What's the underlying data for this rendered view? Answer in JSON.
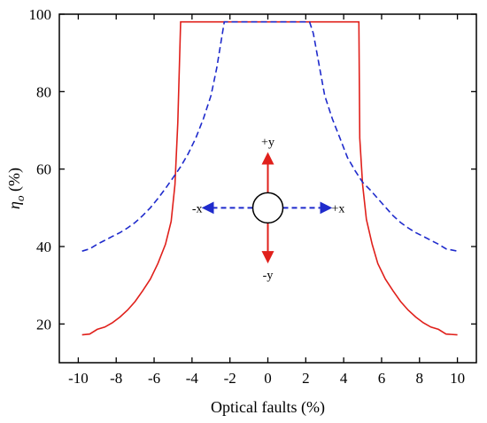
{
  "chart_data": {
    "type": "line",
    "xlabel": "Optical faults (%)",
    "ylabel": {
      "symbol": "η",
      "subscript": "o",
      "unit": " (%)"
    },
    "xlim": [
      -11,
      11
    ],
    "ylim": [
      10,
      100
    ],
    "xticks": [
      -10,
      -8,
      -6,
      -4,
      -2,
      0,
      2,
      4,
      6,
      8,
      10
    ],
    "yticks": [
      20,
      40,
      60,
      80,
      100
    ],
    "tick_labels_x": [
      "-10",
      "-8",
      "-6",
      "-4",
      "-2",
      "0",
      "2",
      "4",
      "6",
      "8",
      "10"
    ],
    "tick_labels_y": [
      "20",
      "40",
      "60",
      "80",
      "100"
    ],
    "grid": false,
    "series": [
      {
        "style": "solid",
        "color": "#e0201b",
        "points": [
          [
            -9.8,
            17.2
          ],
          [
            -9.4,
            17.4
          ],
          [
            -9.0,
            18.6
          ],
          [
            -8.6,
            19.2
          ],
          [
            -8.2,
            20.3
          ],
          [
            -7.8,
            21.8
          ],
          [
            -7.4,
            23.6
          ],
          [
            -7.0,
            25.8
          ],
          [
            -6.6,
            28.6
          ],
          [
            -6.2,
            31.6
          ],
          [
            -5.8,
            35.6
          ],
          [
            -5.4,
            40.6
          ],
          [
            -5.1,
            46.5
          ],
          [
            -4.9,
            56.0
          ],
          [
            -4.75,
            72.0
          ],
          [
            -4.6,
            98.0
          ],
          [
            4.8,
            98.0
          ],
          [
            4.85,
            68.0
          ],
          [
            5.0,
            56.0
          ],
          [
            5.2,
            47.0
          ],
          [
            5.5,
            40.6
          ],
          [
            5.8,
            35.6
          ],
          [
            6.2,
            31.6
          ],
          [
            6.6,
            28.6
          ],
          [
            7.0,
            25.8
          ],
          [
            7.4,
            23.6
          ],
          [
            7.8,
            21.8
          ],
          [
            8.2,
            20.3
          ],
          [
            8.6,
            19.2
          ],
          [
            9.0,
            18.6
          ],
          [
            9.4,
            17.4
          ],
          [
            10.0,
            17.2
          ]
        ]
      },
      {
        "style": "dashed",
        "color": "#1f2bcc",
        "points": [
          [
            -9.8,
            38.8
          ],
          [
            -9.4,
            39.4
          ],
          [
            -9.0,
            40.6
          ],
          [
            -8.6,
            41.6
          ],
          [
            -8.2,
            42.6
          ],
          [
            -7.8,
            43.6
          ],
          [
            -7.4,
            44.8
          ],
          [
            -7.0,
            46.2
          ],
          [
            -6.6,
            48.0
          ],
          [
            -6.2,
            50.0
          ],
          [
            -5.8,
            52.4
          ],
          [
            -5.4,
            55.0
          ],
          [
            -5.0,
            57.8
          ],
          [
            -4.6,
            60.6
          ],
          [
            -4.2,
            64.0
          ],
          [
            -3.8,
            68.0
          ],
          [
            -3.4,
            73.0
          ],
          [
            -3.0,
            79.0
          ],
          [
            -2.7,
            86.0
          ],
          [
            -2.5,
            92.0
          ],
          [
            -2.3,
            98.0
          ],
          [
            2.2,
            98.0
          ],
          [
            2.4,
            95.0
          ],
          [
            2.7,
            87.0
          ],
          [
            3.0,
            79.0
          ],
          [
            3.4,
            73.0
          ],
          [
            3.8,
            68.0
          ],
          [
            4.2,
            63.0
          ],
          [
            4.6,
            59.6
          ],
          [
            5.0,
            56.6
          ],
          [
            5.4,
            54.6
          ],
          [
            5.8,
            52.4
          ],
          [
            6.2,
            50.2
          ],
          [
            6.6,
            48.0
          ],
          [
            7.0,
            46.2
          ],
          [
            7.4,
            44.8
          ],
          [
            7.8,
            43.6
          ],
          [
            8.2,
            42.6
          ],
          [
            8.6,
            41.6
          ],
          [
            9.0,
            40.6
          ],
          [
            9.4,
            39.4
          ],
          [
            10.0,
            38.8
          ]
        ]
      }
    ],
    "annotation": {
      "center": [
        0,
        50
      ],
      "labels": {
        "up": "+y",
        "down": "-y",
        "left": "-x",
        "right": "+x"
      },
      "vertical_arrow_color": "#e0201b",
      "horizontal_arrow_color": "#1f2bcc"
    }
  }
}
